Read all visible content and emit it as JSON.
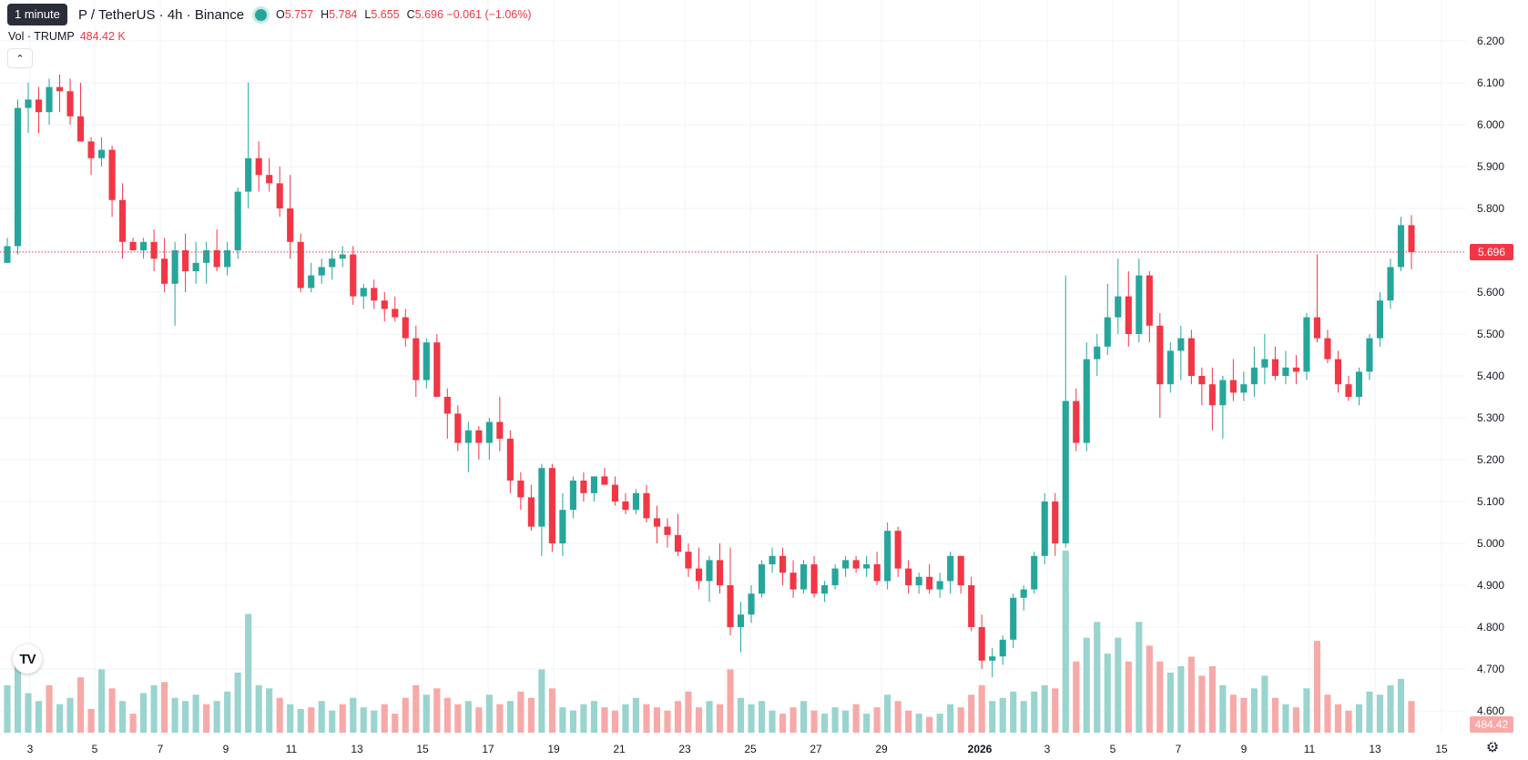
{
  "legend": {
    "tooltip": "1 minute",
    "symbol_title": "P / TetherUS · 4h · Binance",
    "ohlc": {
      "o_label": "O",
      "o": "5.757",
      "h_label": "H",
      "h": "5.784",
      "l_label": "L",
      "l": "5.655",
      "c_label": "C",
      "c": "5.696",
      "change": "−0.061 (−1.06%)"
    }
  },
  "volume_legend": {
    "label": "Vol · TRUMP",
    "value": "484.42 K"
  },
  "collapse_icon": "chevron-up-icon",
  "logo": {
    "text": "TV",
    "icon": "tradingview-logo-icon"
  },
  "settings_icon": "gear-icon",
  "price_badge": "5.696",
  "volume_badge": "484.42 K",
  "colors": {
    "up": "#26a69a",
    "down": "#f23645",
    "up_vol": "#9ad4ce",
    "down_vol": "#f7a9a7",
    "grid": "#f0f3fa"
  },
  "chart_data": {
    "type": "candlestick",
    "interval": "4h",
    "ylim": [
      4.55,
      6.25
    ],
    "y_ticks": [
      "6.200",
      "6.100",
      "6.000",
      "5.900",
      "5.800",
      "5.700",
      "5.600",
      "5.500",
      "5.400",
      "5.300",
      "5.200",
      "5.100",
      "5.000",
      "4.900",
      "4.800",
      "4.700",
      "4.600"
    ],
    "x_ticks": [
      "3",
      "5",
      "7",
      "9",
      "11",
      "13",
      "15",
      "17",
      "19",
      "21",
      "23",
      "25",
      "27",
      "29",
      "2026",
      "3",
      "5",
      "7",
      "9",
      "11",
      "13",
      "15"
    ],
    "last_price": 5.696,
    "ohlc": [
      [
        5.67,
        5.73,
        5.67,
        5.71
      ],
      [
        5.71,
        6.06,
        5.69,
        6.04
      ],
      [
        6.04,
        6.1,
        5.98,
        6.06
      ],
      [
        6.06,
        6.09,
        5.98,
        6.03
      ],
      [
        6.03,
        6.11,
        6.0,
        6.09
      ],
      [
        6.09,
        6.12,
        6.03,
        6.08
      ],
      [
        6.08,
        6.11,
        6.0,
        6.02
      ],
      [
        6.02,
        6.1,
        5.96,
        5.96
      ],
      [
        5.96,
        5.97,
        5.88,
        5.92
      ],
      [
        5.92,
        5.97,
        5.9,
        5.94
      ],
      [
        5.94,
        5.95,
        5.78,
        5.82
      ],
      [
        5.82,
        5.86,
        5.68,
        5.72
      ],
      [
        5.72,
        5.73,
        5.7,
        5.7
      ],
      [
        5.7,
        5.73,
        5.68,
        5.72
      ],
      [
        5.72,
        5.75,
        5.65,
        5.68
      ],
      [
        5.68,
        5.73,
        5.6,
        5.62
      ],
      [
        5.62,
        5.72,
        5.52,
        5.7
      ],
      [
        5.7,
        5.74,
        5.6,
        5.65
      ],
      [
        5.65,
        5.72,
        5.62,
        5.67
      ],
      [
        5.67,
        5.72,
        5.62,
        5.7
      ],
      [
        5.7,
        5.75,
        5.65,
        5.66
      ],
      [
        5.66,
        5.72,
        5.64,
        5.7
      ],
      [
        5.7,
        5.85,
        5.68,
        5.84
      ],
      [
        5.84,
        6.1,
        5.8,
        5.92
      ],
      [
        5.92,
        5.96,
        5.84,
        5.88
      ],
      [
        5.88,
        5.92,
        5.84,
        5.86
      ],
      [
        5.86,
        5.9,
        5.78,
        5.8
      ],
      [
        5.8,
        5.88,
        5.68,
        5.72
      ],
      [
        5.72,
        5.74,
        5.6,
        5.61
      ],
      [
        5.61,
        5.67,
        5.6,
        5.64
      ],
      [
        5.64,
        5.68,
        5.62,
        5.66
      ],
      [
        5.66,
        5.7,
        5.63,
        5.68
      ],
      [
        5.68,
        5.71,
        5.66,
        5.69
      ],
      [
        5.69,
        5.71,
        5.57,
        5.59
      ],
      [
        5.59,
        5.62,
        5.56,
        5.61
      ],
      [
        5.61,
        5.63,
        5.56,
        5.58
      ],
      [
        5.58,
        5.6,
        5.53,
        5.56
      ],
      [
        5.56,
        5.59,
        5.53,
        5.54
      ],
      [
        5.54,
        5.56,
        5.47,
        5.49
      ],
      [
        5.49,
        5.52,
        5.35,
        5.39
      ],
      [
        5.39,
        5.49,
        5.37,
        5.48
      ],
      [
        5.48,
        5.5,
        5.35,
        5.35
      ],
      [
        5.35,
        5.37,
        5.25,
        5.31
      ],
      [
        5.31,
        5.33,
        5.22,
        5.24
      ],
      [
        5.24,
        5.29,
        5.17,
        5.27
      ],
      [
        5.27,
        5.28,
        5.2,
        5.24
      ],
      [
        5.24,
        5.3,
        5.2,
        5.29
      ],
      [
        5.29,
        5.35,
        5.22,
        5.25
      ],
      [
        5.25,
        5.27,
        5.12,
        5.15
      ],
      [
        5.15,
        5.17,
        5.08,
        5.11
      ],
      [
        5.11,
        5.14,
        5.03,
        5.04
      ],
      [
        5.04,
        5.19,
        4.97,
        5.18
      ],
      [
        5.18,
        5.19,
        4.98,
        5.0
      ],
      [
        5.0,
        5.12,
        4.97,
        5.08
      ],
      [
        5.08,
        5.16,
        5.06,
        5.15
      ],
      [
        5.15,
        5.17,
        5.1,
        5.12
      ],
      [
        5.12,
        5.16,
        5.1,
        5.16
      ],
      [
        5.16,
        5.18,
        5.14,
        5.14
      ],
      [
        5.14,
        5.16,
        5.09,
        5.1
      ],
      [
        5.1,
        5.12,
        5.07,
        5.08
      ],
      [
        5.08,
        5.13,
        5.07,
        5.12
      ],
      [
        5.12,
        5.14,
        5.05,
        5.06
      ],
      [
        5.06,
        5.09,
        5.0,
        5.04
      ],
      [
        5.04,
        5.06,
        4.99,
        5.02
      ],
      [
        5.02,
        5.07,
        4.97,
        4.98
      ],
      [
        4.98,
        5.0,
        4.92,
        4.94
      ],
      [
        4.94,
        4.99,
        4.89,
        4.91
      ],
      [
        4.91,
        4.97,
        4.86,
        4.96
      ],
      [
        4.96,
        5.0,
        4.88,
        4.9
      ],
      [
        4.9,
        4.99,
        4.78,
        4.8
      ],
      [
        4.8,
        4.86,
        4.74,
        4.83
      ],
      [
        4.83,
        4.9,
        4.81,
        4.88
      ],
      [
        4.88,
        4.96,
        4.87,
        4.95
      ],
      [
        4.95,
        4.99,
        4.93,
        4.97
      ],
      [
        4.97,
        4.99,
        4.9,
        4.93
      ],
      [
        4.93,
        4.96,
        4.87,
        4.89
      ],
      [
        4.89,
        4.96,
        4.88,
        4.95
      ],
      [
        4.95,
        4.97,
        4.87,
        4.88
      ],
      [
        4.88,
        4.91,
        4.86,
        4.9
      ],
      [
        4.9,
        4.95,
        4.89,
        4.94
      ],
      [
        4.94,
        4.97,
        4.92,
        4.96
      ],
      [
        4.96,
        4.97,
        4.93,
        4.94
      ],
      [
        4.94,
        4.97,
        4.92,
        4.95
      ],
      [
        4.95,
        4.98,
        4.9,
        4.91
      ],
      [
        4.91,
        5.05,
        4.89,
        5.03
      ],
      [
        5.03,
        5.04,
        4.92,
        4.94
      ],
      [
        4.94,
        4.96,
        4.88,
        4.9
      ],
      [
        4.9,
        4.93,
        4.88,
        4.92
      ],
      [
        4.92,
        4.95,
        4.88,
        4.89
      ],
      [
        4.89,
        4.93,
        4.87,
        4.91
      ],
      [
        4.91,
        4.98,
        4.88,
        4.97
      ],
      [
        4.97,
        4.97,
        4.88,
        4.9
      ],
      [
        4.9,
        4.92,
        4.79,
        4.8
      ],
      [
        4.8,
        4.83,
        4.7,
        4.72
      ],
      [
        4.72,
        4.75,
        4.68,
        4.73
      ],
      [
        4.73,
        4.78,
        4.71,
        4.77
      ],
      [
        4.77,
        4.88,
        4.75,
        4.87
      ],
      [
        4.87,
        4.9,
        4.84,
        4.89
      ],
      [
        4.89,
        4.98,
        4.88,
        4.97
      ],
      [
        4.97,
        5.12,
        4.95,
        5.1
      ],
      [
        5.1,
        5.12,
        4.97,
        5.0
      ],
      [
        5.0,
        5.64,
        4.99,
        5.34
      ],
      [
        5.34,
        5.37,
        5.22,
        5.24
      ],
      [
        5.24,
        5.48,
        5.22,
        5.44
      ],
      [
        5.44,
        5.5,
        5.4,
        5.47
      ],
      [
        5.47,
        5.62,
        5.45,
        5.54
      ],
      [
        5.54,
        5.68,
        5.5,
        5.59
      ],
      [
        5.59,
        5.65,
        5.47,
        5.5
      ],
      [
        5.5,
        5.68,
        5.48,
        5.64
      ],
      [
        5.64,
        5.65,
        5.48,
        5.52
      ],
      [
        5.52,
        5.55,
        5.3,
        5.38
      ],
      [
        5.38,
        5.48,
        5.36,
        5.46
      ],
      [
        5.46,
        5.52,
        5.39,
        5.49
      ],
      [
        5.49,
        5.51,
        5.38,
        5.4
      ],
      [
        5.4,
        5.42,
        5.33,
        5.38
      ],
      [
        5.38,
        5.42,
        5.27,
        5.33
      ],
      [
        5.33,
        5.4,
        5.25,
        5.39
      ],
      [
        5.39,
        5.44,
        5.34,
        5.36
      ],
      [
        5.36,
        5.41,
        5.34,
        5.38
      ],
      [
        5.38,
        5.47,
        5.35,
        5.42
      ],
      [
        5.42,
        5.5,
        5.38,
        5.44
      ],
      [
        5.44,
        5.47,
        5.39,
        5.4
      ],
      [
        5.4,
        5.46,
        5.38,
        5.42
      ],
      [
        5.42,
        5.45,
        5.38,
        5.41
      ],
      [
        5.41,
        5.55,
        5.39,
        5.54
      ],
      [
        5.54,
        5.69,
        5.48,
        5.49
      ],
      [
        5.49,
        5.51,
        5.43,
        5.44
      ],
      [
        5.44,
        5.46,
        5.36,
        5.38
      ],
      [
        5.38,
        5.4,
        5.34,
        5.35
      ],
      [
        5.35,
        5.42,
        5.33,
        5.41
      ],
      [
        5.41,
        5.5,
        5.39,
        5.49
      ],
      [
        5.49,
        5.6,
        5.47,
        5.58
      ],
      [
        5.58,
        5.68,
        5.56,
        5.66
      ],
      [
        5.66,
        5.78,
        5.65,
        5.76
      ],
      [
        5.76,
        5.784,
        5.655,
        5.696
      ]
    ],
    "volume": [
      [
        30,
        "up"
      ],
      [
        45,
        "up"
      ],
      [
        25,
        "up"
      ],
      [
        20,
        "up"
      ],
      [
        30,
        "down"
      ],
      [
        18,
        "up"
      ],
      [
        22,
        "up"
      ],
      [
        35,
        "down"
      ],
      [
        15,
        "down"
      ],
      [
        40,
        "up"
      ],
      [
        28,
        "down"
      ],
      [
        20,
        "up"
      ],
      [
        12,
        "down"
      ],
      [
        25,
        "up"
      ],
      [
        30,
        "up"
      ],
      [
        32,
        "down"
      ],
      [
        22,
        "up"
      ],
      [
        20,
        "up"
      ],
      [
        24,
        "up"
      ],
      [
        18,
        "down"
      ],
      [
        20,
        "up"
      ],
      [
        26,
        "up"
      ],
      [
        38,
        "up"
      ],
      [
        75,
        "up"
      ],
      [
        30,
        "up"
      ],
      [
        28,
        "up"
      ],
      [
        22,
        "down"
      ],
      [
        18,
        "up"
      ],
      [
        15,
        "up"
      ],
      [
        16,
        "down"
      ],
      [
        20,
        "up"
      ],
      [
        14,
        "up"
      ],
      [
        18,
        "down"
      ],
      [
        22,
        "up"
      ],
      [
        16,
        "up"
      ],
      [
        14,
        "up"
      ],
      [
        18,
        "down"
      ],
      [
        12,
        "down"
      ],
      [
        22,
        "down"
      ],
      [
        30,
        "down"
      ],
      [
        24,
        "up"
      ],
      [
        28,
        "down"
      ],
      [
        22,
        "down"
      ],
      [
        18,
        "down"
      ],
      [
        20,
        "up"
      ],
      [
        16,
        "down"
      ],
      [
        24,
        "up"
      ],
      [
        18,
        "down"
      ],
      [
        20,
        "up"
      ],
      [
        26,
        "down"
      ],
      [
        22,
        "down"
      ],
      [
        40,
        "up"
      ],
      [
        28,
        "down"
      ],
      [
        16,
        "up"
      ],
      [
        14,
        "up"
      ],
      [
        18,
        "up"
      ],
      [
        20,
        "up"
      ],
      [
        16,
        "down"
      ],
      [
        14,
        "down"
      ],
      [
        18,
        "up"
      ],
      [
        22,
        "up"
      ],
      [
        18,
        "down"
      ],
      [
        16,
        "down"
      ],
      [
        14,
        "down"
      ],
      [
        20,
        "down"
      ],
      [
        26,
        "down"
      ],
      [
        16,
        "down"
      ],
      [
        20,
        "up"
      ],
      [
        18,
        "down"
      ],
      [
        40,
        "down"
      ],
      [
        22,
        "up"
      ],
      [
        18,
        "up"
      ],
      [
        20,
        "up"
      ],
      [
        14,
        "up"
      ],
      [
        12,
        "down"
      ],
      [
        16,
        "down"
      ],
      [
        20,
        "up"
      ],
      [
        14,
        "down"
      ],
      [
        12,
        "up"
      ],
      [
        16,
        "up"
      ],
      [
        14,
        "up"
      ],
      [
        18,
        "down"
      ],
      [
        12,
        "up"
      ],
      [
        16,
        "down"
      ],
      [
        24,
        "up"
      ],
      [
        20,
        "down"
      ],
      [
        14,
        "down"
      ],
      [
        12,
        "up"
      ],
      [
        10,
        "down"
      ],
      [
        12,
        "up"
      ],
      [
        18,
        "up"
      ],
      [
        16,
        "down"
      ],
      [
        24,
        "down"
      ],
      [
        30,
        "down"
      ],
      [
        20,
        "up"
      ],
      [
        22,
        "up"
      ],
      [
        26,
        "up"
      ],
      [
        20,
        "up"
      ],
      [
        26,
        "up"
      ],
      [
        30,
        "up"
      ],
      [
        28,
        "down"
      ],
      [
        115,
        "up"
      ],
      [
        45,
        "down"
      ],
      [
        60,
        "up"
      ],
      [
        70,
        "up"
      ],
      [
        50,
        "up"
      ],
      [
        60,
        "up"
      ],
      [
        45,
        "down"
      ],
      [
        70,
        "up"
      ],
      [
        55,
        "down"
      ],
      [
        45,
        "down"
      ],
      [
        38,
        "up"
      ],
      [
        42,
        "up"
      ],
      [
        48,
        "down"
      ],
      [
        36,
        "down"
      ],
      [
        42,
        "down"
      ],
      [
        30,
        "up"
      ],
      [
        24,
        "down"
      ],
      [
        22,
        "down"
      ],
      [
        28,
        "up"
      ],
      [
        36,
        "up"
      ],
      [
        22,
        "down"
      ],
      [
        18,
        "up"
      ],
      [
        16,
        "down"
      ],
      [
        28,
        "up"
      ],
      [
        58,
        "down"
      ],
      [
        24,
        "down"
      ],
      [
        18,
        "down"
      ],
      [
        14,
        "down"
      ],
      [
        18,
        "up"
      ],
      [
        26,
        "up"
      ],
      [
        24,
        "up"
      ],
      [
        30,
        "up"
      ],
      [
        34,
        "up"
      ],
      [
        20,
        "down"
      ]
    ]
  }
}
